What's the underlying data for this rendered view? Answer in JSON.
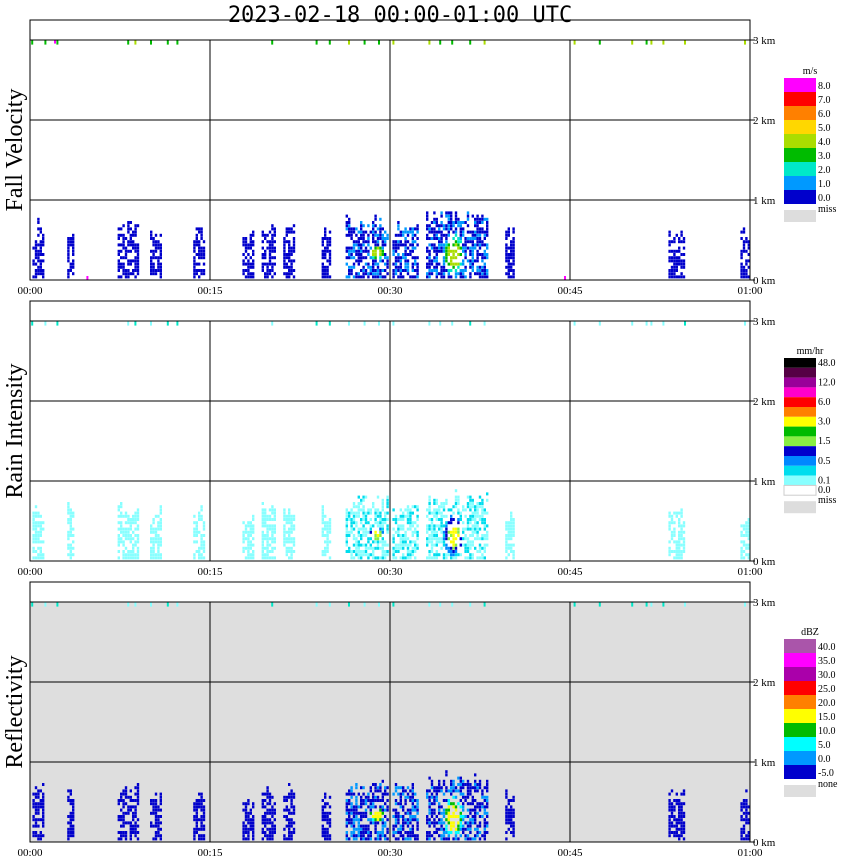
{
  "chart_data": {
    "type": "heatmap",
    "title": "2023-02-18  00:00-01:00 UTC",
    "time_ticks": [
      "00:00",
      "00:15",
      "00:30",
      "00:45",
      "01:00"
    ],
    "height_ticks": [
      "0 km",
      "1 km",
      "2 km",
      "3 km"
    ],
    "time_range_min": [
      0,
      60
    ],
    "height_range_km": [
      0,
      3
    ],
    "panels": [
      {
        "ylabel": "Fall Velocity",
        "unit": "m/s",
        "background": "#ffffff",
        "scale": [
          {
            "color": "#ff00ff",
            "label": "8.0"
          },
          {
            "color": "#ff0000",
            "label": "7.0"
          },
          {
            "color": "#ff8000",
            "label": "6.0"
          },
          {
            "color": "#ffd700",
            "label": "5.0"
          },
          {
            "color": "#aadd00",
            "label": "4.0"
          },
          {
            "color": "#00bb00",
            "label": "3.0"
          },
          {
            "color": "#00e8c8",
            "label": "2.0"
          },
          {
            "color": "#0099ff",
            "label": "1.0"
          },
          {
            "color": "#0000cc",
            "label": "0.0"
          }
        ],
        "miss_label": "miss",
        "miss_color": "#dddddd"
      },
      {
        "ylabel": "Rain Intensity",
        "unit": "mm/hr",
        "background": "#ffffff",
        "scale": [
          {
            "color": "#000000",
            "label": "48.0"
          },
          {
            "color": "#550044",
            "label": ""
          },
          {
            "color": "#990099",
            "label": "12.0"
          },
          {
            "color": "#ff00cc",
            "label": ""
          },
          {
            "color": "#ff0000",
            "label": "6.0"
          },
          {
            "color": "#ff8000",
            "label": ""
          },
          {
            "color": "#ffff00",
            "label": "3.0"
          },
          {
            "color": "#00bb00",
            "label": ""
          },
          {
            "color": "#88ee44",
            "label": "1.5"
          },
          {
            "color": "#0000cc",
            "label": ""
          },
          {
            "color": "#0088ff",
            "label": "0.5"
          },
          {
            "color": "#00ddee",
            "label": ""
          },
          {
            "color": "#88ffff",
            "label": "0.1"
          },
          {
            "color": "#ffffff",
            "label": "0.0"
          }
        ],
        "miss_label": "miss",
        "miss_color": "#dddddd"
      },
      {
        "ylabel": "Reflectivity",
        "unit": "dBZ",
        "background": "#dedede",
        "scale": [
          {
            "color": "#aa55aa",
            "label": "40.0"
          },
          {
            "color": "#ff00ff",
            "label": "35.0"
          },
          {
            "color": "#aa00aa",
            "label": "30.0"
          },
          {
            "color": "#ff0000",
            "label": "25.0"
          },
          {
            "color": "#ff8000",
            "label": "20.0"
          },
          {
            "color": "#ffff00",
            "label": "15.0"
          },
          {
            "color": "#00bb00",
            "label": "10.0"
          },
          {
            "color": "#00ffff",
            "label": "5.0"
          },
          {
            "color": "#0099ff",
            "label": "0.0"
          },
          {
            "color": "#0000cc",
            "label": "-5.0"
          }
        ],
        "miss_label": "none",
        "miss_color": "#dedede"
      }
    ]
  }
}
